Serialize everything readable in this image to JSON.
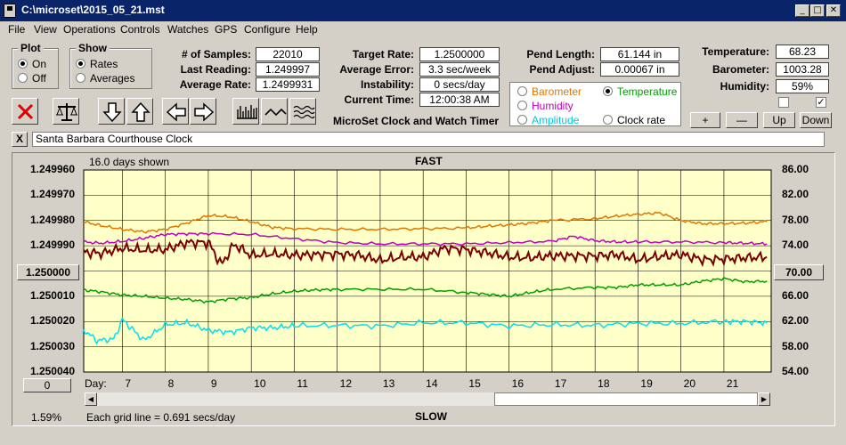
{
  "window": {
    "title": "C:\\microset\\2015_05_21.mst"
  },
  "window_buttons": {
    "minimize": "_",
    "maximize": "□",
    "close": "✕"
  },
  "menu": [
    "File",
    "View",
    "Operations",
    "Controls",
    "Watches",
    "GPS",
    "Configure",
    "Help"
  ],
  "plot_group": {
    "title": "Plot",
    "options": [
      "On",
      "Off"
    ],
    "selected": "On"
  },
  "show_group": {
    "title": "Show",
    "options": [
      "Rates",
      "Averages"
    ],
    "selected": "Rates"
  },
  "stats": {
    "samples_label": "# of Samples:",
    "samples": "22010",
    "last_reading_label": "Last Reading:",
    "last_reading": "1.249997",
    "average_rate_label": "Average Rate:",
    "average_rate": "1.2499931"
  },
  "timing": {
    "target_rate_label": "Target Rate:",
    "target_rate": "1.2500000",
    "average_error_label": "Average Error:",
    "average_error": "3.3 sec/week",
    "instability_label": "Instability:",
    "instability": "0 secs/day",
    "current_time_label": "Current Time:",
    "current_time": "12:00:38 AM"
  },
  "pendulum": {
    "length_label": "Pend Length:",
    "length": "61.144 in",
    "adjust_label": "Pend Adjust:",
    "adjust": "0.00067 in"
  },
  "environment": {
    "temperature_label": "Temperature:",
    "temperature": "68.23",
    "barometer_label": "Barometer:",
    "barometer": "1003.28",
    "humidity_label": "Humidity:",
    "humidity": "59%"
  },
  "secondary_plot": {
    "options": [
      {
        "label": "Barometer",
        "color": "#e07800"
      },
      {
        "label": "Temperature",
        "color": "#00a000"
      },
      {
        "label": "Humidity",
        "color": "#c000c0"
      },
      {
        "label": "Amplitude",
        "color": "#00c8d8"
      },
      {
        "label": "Clock rate",
        "color": "#000000"
      }
    ],
    "selected": "Temperature"
  },
  "checkboxes": [
    false,
    true
  ],
  "panel_buttons": {
    "plus": "+",
    "minus": "—",
    "up": "Up",
    "down": "Down"
  },
  "subtitle": "MicroSet Clock and Watch Timer",
  "clock_name": "Santa Barbara Courthouse Clock",
  "clear_name_button": "X",
  "toolbar_icons": [
    "delete-icon",
    "balance-scale-icon",
    "arrow-down-icon",
    "arrow-up-icon",
    "arrow-left-icon",
    "arrow-right-icon",
    "bar-pattern-icon",
    "wave-pattern-icon",
    "ripple-pattern-icon"
  ],
  "graph": {
    "days_shown": "16.0 days shown",
    "top_label": "FAST",
    "bottom_label": "SLOW",
    "grid_info": "Each grid line = 0.691 secs/day",
    "percent": "1.59%",
    "left_button_value": "1.250000",
    "right_button_value": "70.00",
    "bottom_left_button": "0",
    "day_label": "Day:",
    "background": "#ffffc8"
  },
  "chart_data": {
    "type": "line",
    "left_axis": {
      "ticks": [
        "1.249960",
        "1.249970",
        "1.249980",
        "1.249990",
        "1.250000",
        "1.250010",
        "1.250020",
        "1.250030",
        "1.250040"
      ],
      "range": [
        1.24996,
        1.25004
      ],
      "inverted": true
    },
    "right_axis": {
      "ticks": [
        "86.00",
        "82.00",
        "78.00",
        "74.00",
        "70.00",
        "66.00",
        "62.00",
        "58.00",
        "54.00"
      ],
      "range": [
        54,
        86
      ]
    },
    "x_axis": {
      "label": "Day:",
      "ticks": [
        "7",
        "8",
        "9",
        "10",
        "11",
        "12",
        "13",
        "14",
        "15",
        "16",
        "17",
        "18",
        "19",
        "20",
        "21"
      ],
      "range": [
        6.1,
        22.1
      ]
    },
    "grid": true,
    "series": [
      {
        "color": "#e07800",
        "x": [
          6.1,
          6.5,
          7,
          7.5,
          8,
          8.5,
          9,
          9.5,
          10,
          10.5,
          11,
          12,
          13,
          14,
          15,
          15.5,
          16,
          16.5,
          17,
          18,
          18.5,
          19,
          19.5,
          20,
          20.5,
          21,
          21.5,
          22
        ],
        "y": [
          77.8,
          77.2,
          76.6,
          76.2,
          76.6,
          77.6,
          78.8,
          78.6,
          77.8,
          76.9,
          76.7,
          76.6,
          76.6,
          76.7,
          76.8,
          77.1,
          77.3,
          77.6,
          78.0,
          78.3,
          78.7,
          79.0,
          79.2,
          78.0,
          77.5,
          77.5,
          77.6,
          77.8
        ]
      },
      {
        "color": "#c000c0",
        "x": [
          6.1,
          6.5,
          7,
          7.5,
          8,
          8.5,
          9,
          10,
          11,
          12,
          13,
          14,
          15,
          16,
          17,
          17.5,
          18,
          18.5,
          19,
          20,
          21,
          21.5,
          22
        ],
        "y": [
          74.6,
          74.4,
          74.7,
          75.2,
          75.8,
          75.9,
          75.9,
          75.8,
          75.1,
          74.5,
          74.3,
          74.3,
          74.3,
          74.5,
          74.7,
          75.5,
          74.8,
          74.6,
          74.6,
          74.6,
          74.5,
          74.4,
          74.3
        ]
      },
      {
        "color": "#7a0000",
        "x": [
          6.1,
          6.5,
          7,
          7.5,
          8,
          8.5,
          9,
          9.3,
          9.6,
          10,
          10.5,
          11,
          11.5,
          12,
          12.5,
          13,
          13.5,
          14,
          14.5,
          15,
          15.5,
          16,
          16.5,
          17,
          17.5,
          18,
          18.5,
          19,
          19.5,
          20,
          20.5,
          21,
          21.5,
          22
        ],
        "y": [
          73.0,
          72.8,
          73.6,
          73.3,
          73.4,
          74.5,
          74.5,
          71.0,
          74.2,
          72.5,
          72.7,
          72.5,
          72.6,
          72.7,
          72.5,
          71.7,
          72.2,
          72.2,
          73.6,
          73.4,
          72.9,
          72.2,
          72.1,
          72.4,
          72.4,
          72.4,
          72.6,
          71.8,
          72.3,
          72.6,
          71.8,
          71.9,
          72.1,
          72.2
        ]
      },
      {
        "color": "#00a000",
        "x": [
          6.1,
          6.5,
          7,
          7.5,
          8,
          8.5,
          9,
          9.5,
          10,
          10.5,
          11,
          11.5,
          12,
          13,
          14,
          15,
          15.5,
          16,
          16.5,
          17,
          18,
          18.5,
          19,
          19.5,
          20,
          20.5,
          21,
          21.5,
          22
        ],
        "y": [
          67.0,
          66.7,
          66.2,
          66.0,
          65.7,
          65.5,
          65.1,
          65.6,
          65.8,
          66.4,
          66.8,
          67.0,
          67.1,
          67.1,
          67.1,
          66.6,
          66.3,
          66.0,
          66.6,
          67.1,
          67.4,
          67.4,
          67.8,
          67.8,
          67.8,
          68.4,
          68.8,
          68.3,
          68.4
        ]
      },
      {
        "color": "#00e0f0",
        "x": [
          6.1,
          6.4,
          6.8,
          7,
          7.2,
          7.5,
          8,
          8.5,
          9,
          9.5,
          10,
          10.5,
          11,
          12,
          13,
          14,
          15,
          16,
          17,
          18,
          19,
          20,
          21,
          21.5,
          22
        ],
        "y": [
          60.7,
          59.0,
          59.2,
          62.3,
          61.0,
          59.0,
          61.5,
          61.8,
          60.6,
          60.3,
          61.0,
          61.0,
          61.3,
          61.4,
          61.3,
          61.8,
          61.8,
          61.3,
          61.5,
          61.4,
          61.7,
          61.7,
          62.0,
          62.0,
          61.8
        ]
      }
    ]
  }
}
